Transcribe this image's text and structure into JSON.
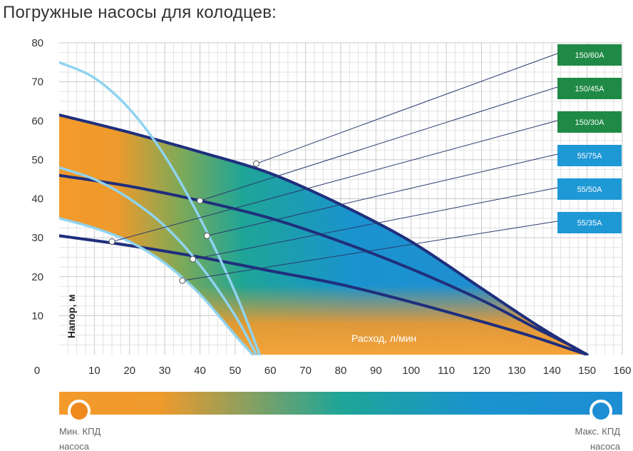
{
  "page": {
    "title": "Погружные насосы для колодцев:"
  },
  "chart_data": {
    "type": "line",
    "title": "Погружные насосы для колодцев:",
    "xlabel": "Расход, л/мин",
    "ylabel": "Напор, м",
    "xlim": [
      0,
      160
    ],
    "ylim": [
      0,
      80
    ],
    "xticks": [
      0,
      10,
      20,
      30,
      40,
      50,
      60,
      70,
      80,
      90,
      100,
      110,
      120,
      130,
      140,
      150,
      160
    ],
    "yticks": [
      10,
      20,
      30,
      40,
      50,
      60,
      70,
      80
    ],
    "grid": true,
    "series": [
      {
        "name": "150/60A",
        "x": [
          0,
          20,
          40,
          60,
          80,
          100,
          120,
          135,
          145,
          150
        ],
        "y": [
          61.5,
          57,
          52,
          46.5,
          38.5,
          29,
          17,
          8,
          2.5,
          0
        ],
        "marker": [
          56,
          49
        ]
      },
      {
        "name": "150/45A",
        "x": [
          0,
          20,
          40,
          60,
          80,
          100,
          120,
          135,
          145,
          150
        ],
        "y": [
          46,
          43.2,
          39.5,
          35,
          29,
          22,
          14,
          7,
          2.5,
          0
        ],
        "marker": [
          40,
          39.5
        ]
      },
      {
        "name": "150/30A",
        "x": [
          0,
          20,
          40,
          60,
          80,
          100,
          120,
          135,
          145,
          150
        ],
        "y": [
          30.5,
          28,
          25,
          21.5,
          18,
          13.5,
          8.5,
          4.5,
          1.5,
          0
        ],
        "marker": [
          15,
          29
        ]
      },
      {
        "name": "55/75A",
        "x": [
          0,
          10,
          20,
          30,
          40,
          50,
          57
        ],
        "y": [
          75,
          71,
          63,
          51,
          35,
          16,
          0
        ],
        "marker": [
          42,
          30.5
        ]
      },
      {
        "name": "55/50A",
        "x": [
          0,
          10,
          20,
          30,
          40,
          50,
          56
        ],
        "y": [
          48,
          45,
          40,
          33,
          23,
          10,
          0
        ],
        "marker": [
          38,
          24.5
        ]
      },
      {
        "name": "55/35A",
        "x": [
          0,
          10,
          20,
          30,
          40,
          50,
          55
        ],
        "y": [
          35,
          32.5,
          29,
          23.5,
          15.5,
          5,
          0
        ],
        "marker": [
          35,
          19
        ]
      }
    ],
    "colors": {
      "orange": "#f39a2b",
      "teal": "#1da89a",
      "blue": "#1a8bd4",
      "navy": "#1f2f7c",
      "light_blue": "#8fd3f0",
      "green_badge": "#1f8a46",
      "blue_badge": "#1f98d6"
    },
    "efficiency_scale": {
      "min_label_line1": "Мин. КПД",
      "min_label_line2": "насоса",
      "max_label_line1": "Макс. КПД",
      "max_label_line2": "насоса"
    }
  }
}
